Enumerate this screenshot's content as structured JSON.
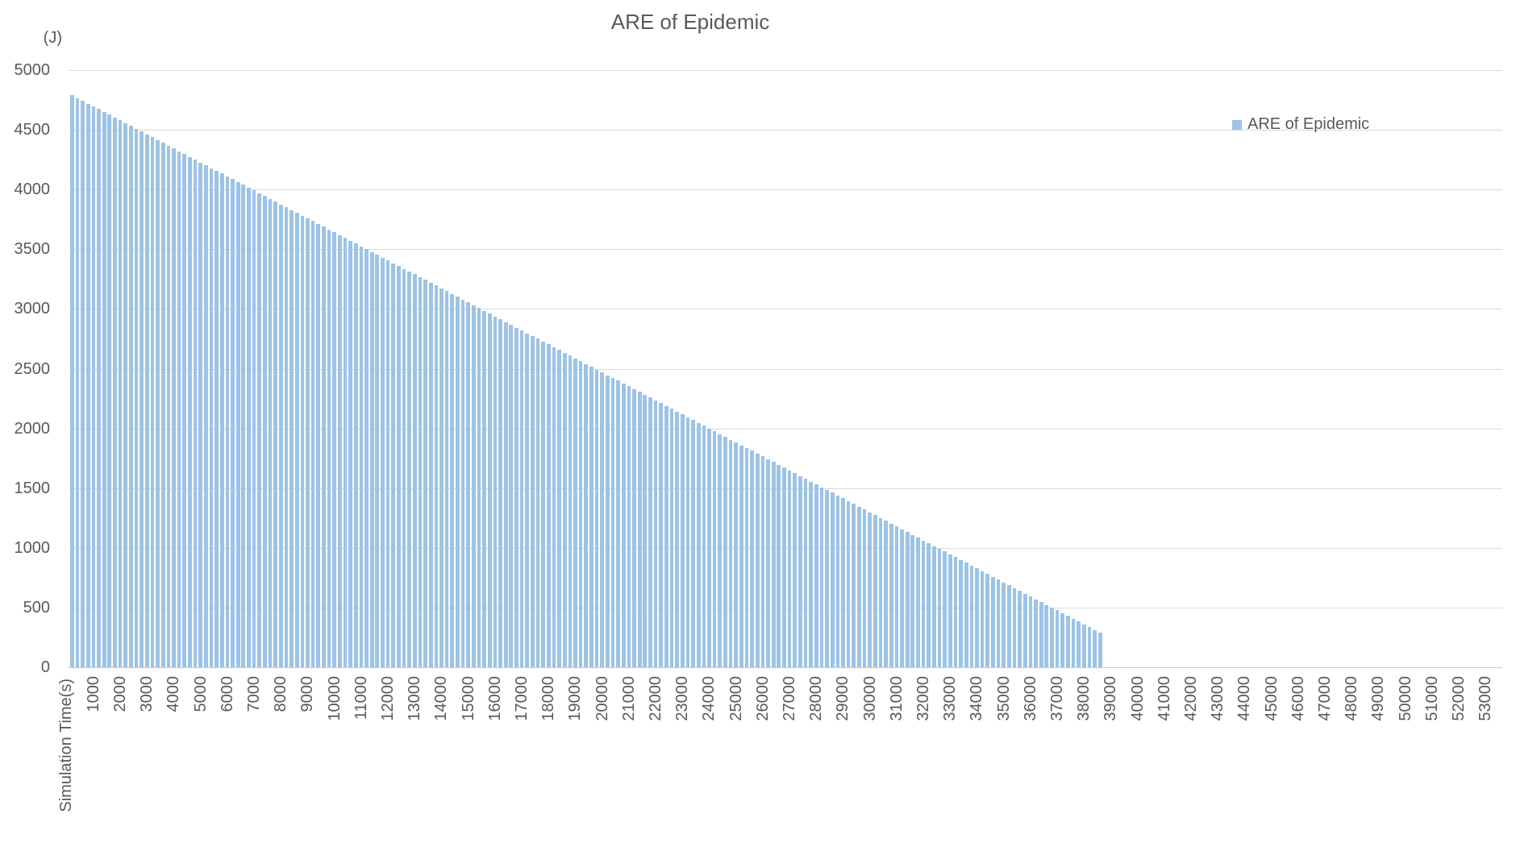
{
  "colors": {
    "bar": "#9DC3E6",
    "gridline": "#D9D9D9",
    "axis_line": "#C9C9C9",
    "text": "#595959"
  },
  "legend": {
    "label": "ARE of Epidemic",
    "position": "right"
  },
  "chart_data": {
    "type": "bar",
    "title": "ARE of Epidemic",
    "ylabel": "(J)",
    "xlabel": "Simulation Time(s)",
    "grid": true,
    "legend_position": "right",
    "ylim": [
      0,
      5000
    ],
    "y_ticks": [
      0,
      500,
      1000,
      1500,
      2000,
      2500,
      3000,
      3500,
      4000,
      4500,
      5000
    ],
    "x_start": 200,
    "x_step": 200,
    "x_axis_end": 53000,
    "x_data_end": 38600,
    "x_tick_labels": [
      "1000",
      "2000",
      "3000",
      "4000",
      "5000",
      "6000",
      "7000",
      "8000",
      "9000",
      "10000",
      "11000",
      "12000",
      "13000",
      "14000",
      "15000",
      "16000",
      "17000",
      "18000",
      "19000",
      "20000",
      "21000",
      "22000",
      "23000",
      "24000",
      "25000",
      "26000",
      "27000",
      "28000",
      "29000",
      "30000",
      "31000",
      "32000",
      "33000",
      "34000",
      "35000",
      "36000",
      "37000",
      "38000",
      "39000",
      "40000",
      "41000",
      "42000",
      "43000",
      "44000",
      "45000",
      "46000",
      "47000",
      "48000",
      "49000",
      "50000",
      "51000",
      "52000",
      "53000"
    ],
    "series_name": "ARE of Epidemic",
    "values": [
      4790,
      4767,
      4743,
      4720,
      4696,
      4673,
      4649,
      4626,
      4602,
      4579,
      4556,
      4532,
      4509,
      4485,
      4462,
      4438,
      4415,
      4391,
      4368,
      4345,
      4321,
      4298,
      4274,
      4251,
      4227,
      4204,
      4180,
      4157,
      4134,
      4110,
      4087,
      4063,
      4040,
      4016,
      3993,
      3969,
      3946,
      3923,
      3899,
      3876,
      3852,
      3829,
      3805,
      3782,
      3758,
      3735,
      3712,
      3688,
      3665,
      3641,
      3618,
      3594,
      3571,
      3547,
      3524,
      3501,
      3477,
      3454,
      3430,
      3407,
      3383,
      3360,
      3336,
      3313,
      3290,
      3266,
      3243,
      3219,
      3196,
      3172,
      3149,
      3125,
      3102,
      3079,
      3055,
      3032,
      3008,
      2985,
      2961,
      2938,
      2914,
      2891,
      2868,
      2844,
      2821,
      2797,
      2774,
      2750,
      2727,
      2703,
      2680,
      2657,
      2633,
      2610,
      2586,
      2563,
      2539,
      2516,
      2492,
      2469,
      2446,
      2422,
      2399,
      2375,
      2352,
      2328,
      2305,
      2281,
      2258,
      2235,
      2211,
      2188,
      2164,
      2141,
      2117,
      2094,
      2070,
      2047,
      2024,
      2000,
      1977,
      1953,
      1930,
      1906,
      1883,
      1859,
      1836,
      1813,
      1789,
      1766,
      1742,
      1719,
      1695,
      1672,
      1648,
      1625,
      1602,
      1578,
      1555,
      1531,
      1508,
      1484,
      1461,
      1437,
      1414,
      1391,
      1367,
      1344,
      1320,
      1297,
      1273,
      1250,
      1226,
      1203,
      1180,
      1156,
      1133,
      1109,
      1086,
      1062,
      1039,
      1015,
      992,
      969,
      945,
      922,
      898,
      875,
      851,
      828,
      804,
      781,
      758,
      734,
      711,
      687,
      664,
      640,
      617,
      593,
      570,
      547,
      523,
      500,
      476,
      453,
      429,
      406,
      382,
      359,
      336,
      312,
      289
    ]
  }
}
